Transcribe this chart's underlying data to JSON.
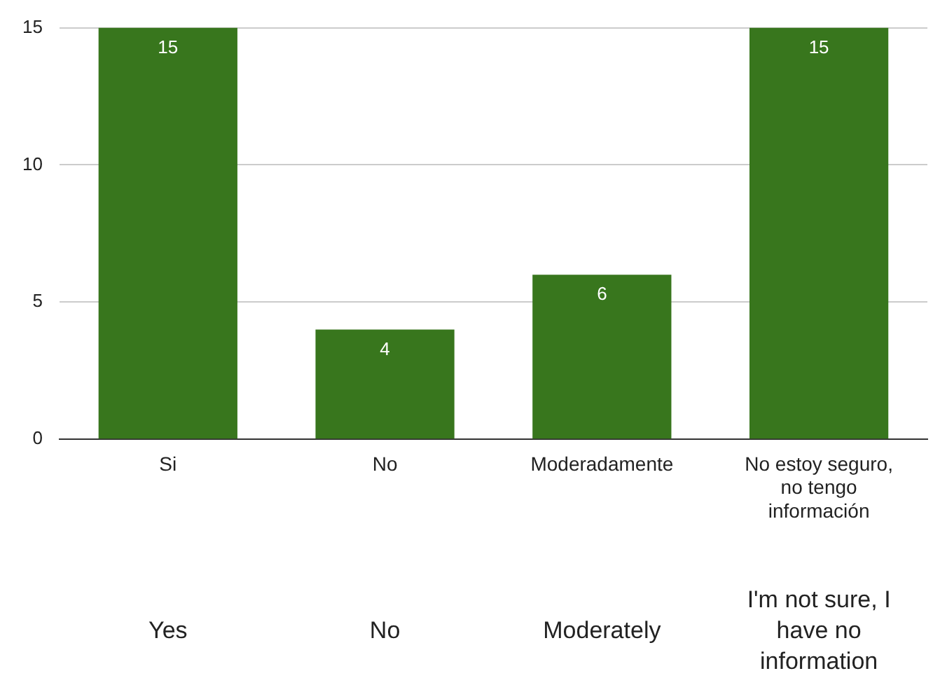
{
  "chart_data": {
    "type": "bar",
    "categories": [
      "Si",
      "No",
      "Moderadamente",
      "No estoy seguro, no tengo información"
    ],
    "values": [
      15,
      4,
      6,
      15
    ],
    "color": "#38761d",
    "ylim": [
      0,
      15
    ],
    "yticks": [
      0,
      5,
      10,
      15
    ],
    "grid": "y",
    "legend": false,
    "data_labels": true,
    "annotations": [
      "Yes",
      "No",
      "Moderately",
      "I'm not sure, I have no information"
    ]
  }
}
